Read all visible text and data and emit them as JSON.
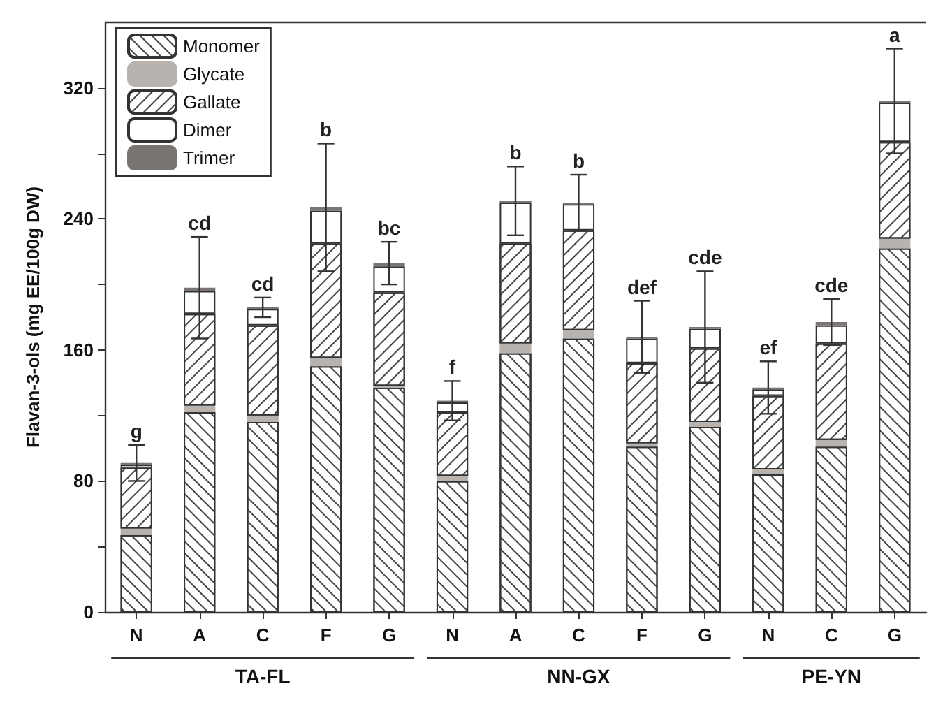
{
  "chart_data": {
    "type": "bar",
    "stacked": true,
    "ylabel": "Flavan-3-ols (mg EE/100g DW)",
    "categories": [
      "N",
      "A",
      "C",
      "F",
      "G",
      "N",
      "A",
      "C",
      "F",
      "G",
      "N",
      "C",
      "G"
    ],
    "series": [
      {
        "name": "Monomer",
        "color": "#ffffff",
        "values": [
          47,
          122,
          116,
          150,
          137,
          80,
          158,
          167,
          101,
          113,
          84,
          101,
          222
        ]
      },
      {
        "name": "Glycate",
        "color": "#b8b3ae",
        "values": [
          4,
          4,
          4,
          5,
          1,
          3,
          6,
          5,
          2,
          3,
          3,
          4,
          6
        ]
      },
      {
        "name": "Gallate",
        "color": "#ffffff",
        "values": [
          37,
          56,
          55,
          70,
          57,
          39,
          61,
          61,
          49,
          45,
          45,
          59,
          59
        ]
      },
      {
        "name": "Dimer",
        "color": "#ffffff",
        "values": [
          2,
          14,
          10,
          20,
          16,
          6,
          25,
          16,
          15,
          12,
          4,
          11,
          24
        ]
      },
      {
        "name": "Trimer",
        "color": "#7a7572",
        "values": [
          1,
          2,
          1,
          2,
          2,
          1,
          1,
          1,
          1,
          1,
          1,
          2,
          1
        ],
        "errors": [
          11,
          31,
          6,
          39,
          13,
          12,
          21,
          17,
          22,
          34,
          16,
          14,
          32
        ]
      }
    ],
    "ylim": [
      0,
      360
    ],
    "yticks": [
      0,
      {
        "value": 40,
        "label": null
      },
      80,
      {
        "value": 120,
        "label": null
      },
      160,
      {
        "value": 200,
        "label": null
      },
      240,
      {
        "value": 280,
        "label": null
      },
      320
    ],
    "grid": false,
    "legend": "top left",
    "annotations": [
      "g",
      "cd",
      "cd",
      "b",
      "bc",
      "f",
      "b",
      "b",
      "def",
      "cde",
      "ef",
      "cde",
      "a",
      "TA-FL",
      "NN-GX",
      "PE-YN"
    ]
  }
}
